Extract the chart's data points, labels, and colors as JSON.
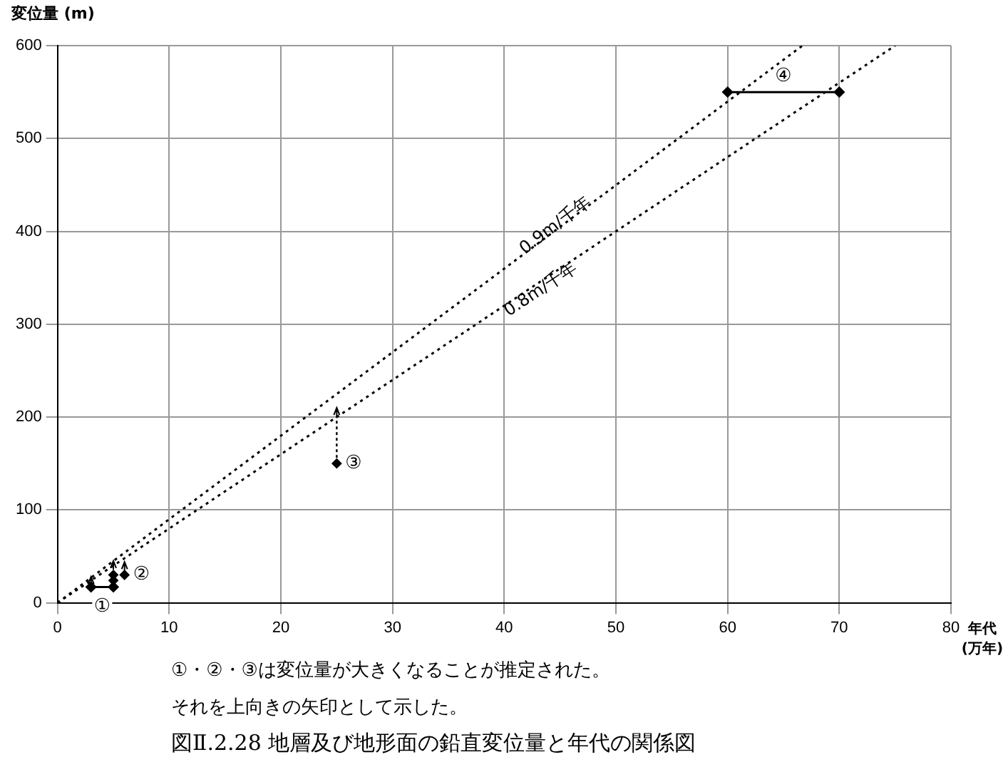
{
  "chart_data": {
    "type": "scatter",
    "title": "図Ⅱ.2.28 地層及び地形面の鉛直変位量と年代の関係図",
    "xlabel": "年代 (万年)",
    "ylabel": "変位量 (m)",
    "xlim": [
      0,
      80
    ],
    "xticks": [
      0,
      10,
      20,
      30,
      40,
      50,
      60,
      70,
      80
    ],
    "ylim": [
      0,
      600
    ],
    "yticks": [
      0,
      100,
      200,
      300,
      400,
      500,
      600
    ],
    "grid": true,
    "marker": "diamond",
    "series": [
      {
        "type": "line",
        "color": "#000000",
        "line_style": "dotted",
        "marker": "none",
        "x": [
          0,
          66.7
        ],
        "values": [
          0,
          600
        ]
      },
      {
        "type": "line",
        "color": "#000000",
        "line_style": "dotted",
        "marker": "none",
        "x": [
          0,
          75
        ],
        "values": [
          0,
          600
        ]
      },
      {
        "type": "line",
        "name": "①",
        "color": "#000000",
        "line_style": "solid",
        "x": [
          3,
          5
        ],
        "values": [
          17,
          17
        ],
        "errors": [
          [
            17,
            28
          ],
          null
        ]
      },
      {
        "name": "②",
        "color": "#000000",
        "x": [
          5,
          5,
          6
        ],
        "values": [
          24,
          30,
          30
        ],
        "errors": [
          null,
          [
            30,
            45
          ],
          [
            30,
            44
          ]
        ]
      },
      {
        "name": "③",
        "color": "#000000",
        "x": [
          25
        ],
        "values": [
          150
        ],
        "errors": [
          [
            150,
            210
          ]
        ]
      },
      {
        "type": "line",
        "name": "④",
        "color": "#000000",
        "line_style": "solid",
        "x": [
          60,
          70
        ],
        "values": [
          550,
          550
        ]
      }
    ],
    "annotations": [
      {
        "text": "0.9m/千年",
        "x": 44.6,
        "y": 406
      },
      {
        "text": "0.8m/千年",
        "x": 43.3,
        "y": 337
      },
      "①・②・③は変位量が大きくなることが推定された。",
      "それを上向きの矢印として示した。"
    ]
  }
}
